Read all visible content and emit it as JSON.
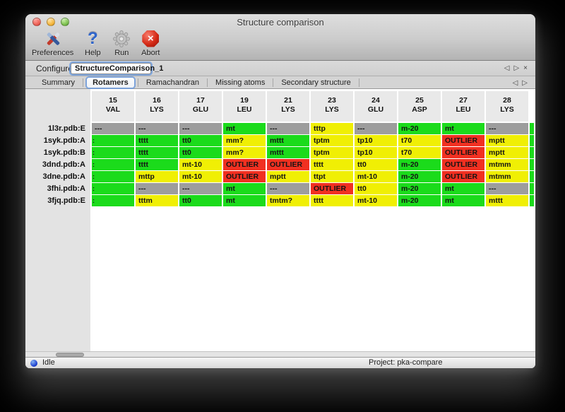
{
  "window": {
    "title": "Structure comparison"
  },
  "toolbar": {
    "items": [
      {
        "label": "Preferences",
        "icon": "preferences-icon"
      },
      {
        "label": "Help",
        "icon": "help-icon"
      },
      {
        "label": "Run",
        "icon": "run-icon"
      },
      {
        "label": "Abort",
        "icon": "abort-icon"
      }
    ]
  },
  "configure": {
    "label": "Configure",
    "value": "StructureComparison_1",
    "controls": [
      {
        "name": "prev-configuration-button",
        "glyph": "◁"
      },
      {
        "name": "next-configuration-button",
        "glyph": "▷"
      },
      {
        "name": "close-configuration-button",
        "glyph": "×"
      }
    ]
  },
  "tabs": {
    "selected": "Rotamers",
    "items": [
      "Summary",
      "Rotamers",
      "Ramachandran",
      "Missing atoms",
      "Secondary structure"
    ],
    "scroll_controls": [
      {
        "name": "scroll-tabs-left-button",
        "glyph": "◁"
      },
      {
        "name": "scroll-tabs-right-button",
        "glyph": "▷"
      }
    ]
  },
  "table": {
    "columns": [
      {
        "num": "15",
        "res": "VAL"
      },
      {
        "num": "16",
        "res": "LYS"
      },
      {
        "num": "17",
        "res": "GLU"
      },
      {
        "num": "19",
        "res": "LEU"
      },
      {
        "num": "21",
        "res": "LYS"
      },
      {
        "num": "23",
        "res": "LYS"
      },
      {
        "num": "24",
        "res": "GLU"
      },
      {
        "num": "25",
        "res": "ASP"
      },
      {
        "num": "27",
        "res": "LEU"
      },
      {
        "num": "28",
        "res": "LYS"
      }
    ],
    "cell_colors": {
      "g": "#1bdb1b",
      "y": "#f0ef04",
      "r": "#f13021",
      "n": "#9d9d9d"
    },
    "rows": [
      {
        "label": "1l3r.pdb:E",
        "cells": [
          {
            "v": "---",
            "c": "n"
          },
          {
            "v": "---",
            "c": "n"
          },
          {
            "v": "---",
            "c": "n"
          },
          {
            "v": "mt",
            "c": "g"
          },
          {
            "v": "---",
            "c": "n"
          },
          {
            "v": "tttp",
            "c": "y"
          },
          {
            "v": "---",
            "c": "n"
          },
          {
            "v": "m-20",
            "c": "g"
          },
          {
            "v": "mt",
            "c": "g"
          },
          {
            "v": "---",
            "c": "n"
          }
        ],
        "partial": "g"
      },
      {
        "label": "1syk.pdb:A",
        "cells": [
          {
            "v": ":",
            "c": "g"
          },
          {
            "v": "tttt",
            "c": "g"
          },
          {
            "v": "tt0",
            "c": "g"
          },
          {
            "v": "mm?",
            "c": "y"
          },
          {
            "v": "mttt",
            "c": "g"
          },
          {
            "v": "tptm",
            "c": "y"
          },
          {
            "v": "tp10",
            "c": "y"
          },
          {
            "v": "t70",
            "c": "y"
          },
          {
            "v": "OUTLIER",
            "c": "r"
          },
          {
            "v": "mptt",
            "c": "y"
          }
        ],
        "partial": "g"
      },
      {
        "label": "1syk.pdb:B",
        "cells": [
          {
            "v": ":",
            "c": "g"
          },
          {
            "v": "tttt",
            "c": "g"
          },
          {
            "v": "tt0",
            "c": "g"
          },
          {
            "v": "mm?",
            "c": "y"
          },
          {
            "v": "mttt",
            "c": "g"
          },
          {
            "v": "tptm",
            "c": "y"
          },
          {
            "v": "tp10",
            "c": "y"
          },
          {
            "v": "t70",
            "c": "y"
          },
          {
            "v": "OUTLIER",
            "c": "r"
          },
          {
            "v": "mptt",
            "c": "y"
          }
        ],
        "partial": "g"
      },
      {
        "label": "3dnd.pdb:A",
        "cells": [
          {
            "v": ":",
            "c": "g"
          },
          {
            "v": "tttt",
            "c": "g"
          },
          {
            "v": "mt-10",
            "c": "y"
          },
          {
            "v": "OUTLIER",
            "c": "r"
          },
          {
            "v": "OUTLIER",
            "c": "r"
          },
          {
            "v": "tttt",
            "c": "y"
          },
          {
            "v": "tt0",
            "c": "y"
          },
          {
            "v": "m-20",
            "c": "g"
          },
          {
            "v": "OUTLIER",
            "c": "r"
          },
          {
            "v": "mtmm",
            "c": "y"
          }
        ],
        "partial": "g"
      },
      {
        "label": "3dne.pdb:A",
        "cells": [
          {
            "v": ":",
            "c": "g"
          },
          {
            "v": "mttp",
            "c": "y"
          },
          {
            "v": "mt-10",
            "c": "y"
          },
          {
            "v": "OUTLIER",
            "c": "r"
          },
          {
            "v": "mptt",
            "c": "y"
          },
          {
            "v": "ttpt",
            "c": "y"
          },
          {
            "v": "mt-10",
            "c": "y"
          },
          {
            "v": "m-20",
            "c": "g"
          },
          {
            "v": "OUTLIER",
            "c": "r"
          },
          {
            "v": "mtmm",
            "c": "y"
          }
        ],
        "partial": "g"
      },
      {
        "label": "3fhi.pdb:A",
        "cells": [
          {
            "v": ":",
            "c": "g"
          },
          {
            "v": "---",
            "c": "n"
          },
          {
            "v": "---",
            "c": "n"
          },
          {
            "v": "mt",
            "c": "g"
          },
          {
            "v": "---",
            "c": "n"
          },
          {
            "v": "OUTLIER",
            "c": "r"
          },
          {
            "v": "tt0",
            "c": "y"
          },
          {
            "v": "m-20",
            "c": "g"
          },
          {
            "v": "mt",
            "c": "g"
          },
          {
            "v": "---",
            "c": "n"
          }
        ],
        "partial": "g"
      },
      {
        "label": "3fjq.pdb:E",
        "cells": [
          {
            "v": ":",
            "c": "g"
          },
          {
            "v": "tttm",
            "c": "y"
          },
          {
            "v": "tt0",
            "c": "g"
          },
          {
            "v": "mt",
            "c": "g"
          },
          {
            "v": "tmtm?",
            "c": "y"
          },
          {
            "v": "tttt",
            "c": "y"
          },
          {
            "v": "mt-10",
            "c": "y"
          },
          {
            "v": "m-20",
            "c": "g"
          },
          {
            "v": "mt",
            "c": "g"
          },
          {
            "v": "mttt",
            "c": "y"
          }
        ],
        "partial": "g"
      }
    ]
  },
  "statusbar": {
    "status": "Idle",
    "project": "Project: pka-compare"
  }
}
